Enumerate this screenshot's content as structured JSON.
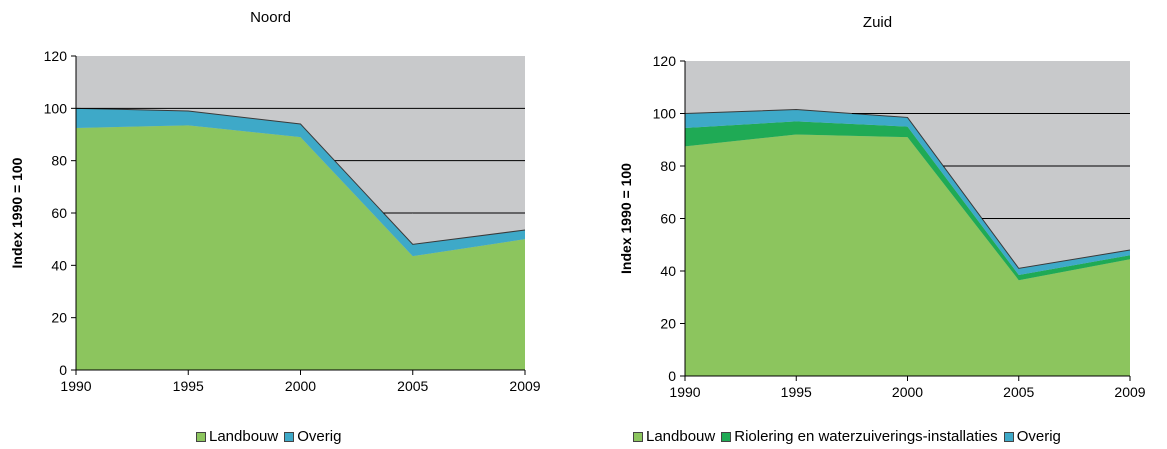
{
  "chart_data": [
    {
      "type": "area",
      "stacked": true,
      "title": "Noord",
      "ylabel": "Index 1990 = 100",
      "xlabel": "",
      "x": [
        "1990",
        "1995",
        "2000",
        "2005",
        "2009"
      ],
      "ylim": [
        0,
        120
      ],
      "yticks": [
        0,
        20,
        40,
        60,
        80,
        100,
        120
      ],
      "grid": true,
      "legend_position": "bottom",
      "plot_background": "#c8c9cb",
      "series": [
        {
          "name": "Landbouw",
          "color": "#8cc55e",
          "values": [
            92.5,
            93.5,
            89,
            43.5,
            50
          ]
        },
        {
          "name": "Overig",
          "color": "#3ea9c8",
          "values": [
            7.5,
            5.5,
            5,
            4.5,
            3.5
          ]
        }
      ]
    },
    {
      "type": "area",
      "stacked": true,
      "title": "Zuid",
      "ylabel": "Index 1990 = 100",
      "xlabel": "",
      "x": [
        "1990",
        "1995",
        "2000",
        "2005",
        "2009"
      ],
      "ylim": [
        0,
        120
      ],
      "yticks": [
        0,
        20,
        40,
        60,
        80,
        100,
        120
      ],
      "grid": true,
      "legend_position": "bottom",
      "plot_background": "#c8c9cb",
      "series": [
        {
          "name": "Landbouw",
          "color": "#8cc55e",
          "values": [
            87.5,
            92,
            91,
            36.5,
            44.5
          ]
        },
        {
          "name": "Riolering en waterzuiverings-installaties",
          "color": "#1faa55",
          "values": [
            7,
            5,
            4,
            2,
            1.5
          ]
        },
        {
          "name": "Overig",
          "color": "#3ea9c8",
          "values": [
            5.5,
            4.5,
            3.5,
            2.5,
            2
          ]
        }
      ]
    }
  ]
}
